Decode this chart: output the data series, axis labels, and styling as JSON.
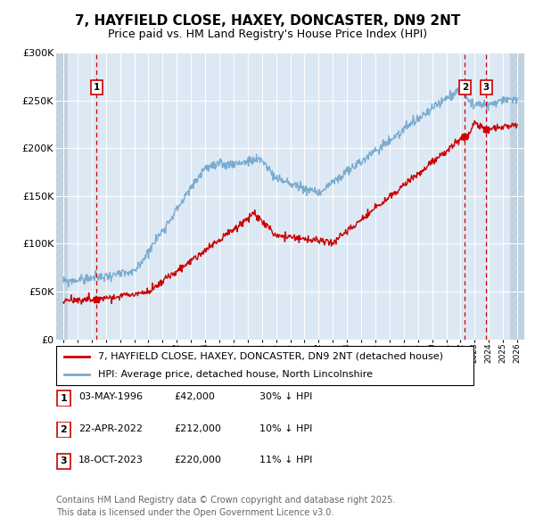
{
  "title": "7, HAYFIELD CLOSE, HAXEY, DONCASTER, DN9 2NT",
  "subtitle": "Price paid vs. HM Land Registry's House Price Index (HPI)",
  "ylim": [
    0,
    300000
  ],
  "yticks": [
    0,
    50000,
    100000,
    150000,
    200000,
    250000,
    300000
  ],
  "ytick_labels": [
    "£0",
    "£50K",
    "£100K",
    "£150K",
    "£200K",
    "£250K",
    "£300K"
  ],
  "xlim_start": 1993.5,
  "xlim_end": 2026.5,
  "hatch_left_end": 1994.3,
  "hatch_right_start": 2025.5,
  "bg_color": "#dce9f5",
  "grid_color": "#ffffff",
  "hatch_color": "#b8ccdb",
  "red_line_color": "#cc0000",
  "blue_line_color": "#7aabcf",
  "transactions": [
    {
      "num": 1,
      "date": "03-MAY-1996",
      "price": 42000,
      "year": 1996.34,
      "hpi_pct": "30% ↓ HPI"
    },
    {
      "num": 2,
      "date": "22-APR-2022",
      "price": 212000,
      "year": 2022.31,
      "hpi_pct": "10% ↓ HPI"
    },
    {
      "num": 3,
      "date": "18-OCT-2023",
      "price": 220000,
      "year": 2023.8,
      "hpi_pct": "11% ↓ HPI"
    }
  ],
  "legend_line1": "7, HAYFIELD CLOSE, HAXEY, DONCASTER, DN9 2NT (detached house)",
  "legend_line2": "HPI: Average price, detached house, North Lincolnshire",
  "footer": "Contains HM Land Registry data © Crown copyright and database right 2025.\nThis data is licensed under the Open Government Licence v3.0.",
  "title_fontsize": 11,
  "subtitle_fontsize": 9,
  "tick_fontsize": 8,
  "legend_fontsize": 8,
  "footer_fontsize": 7
}
